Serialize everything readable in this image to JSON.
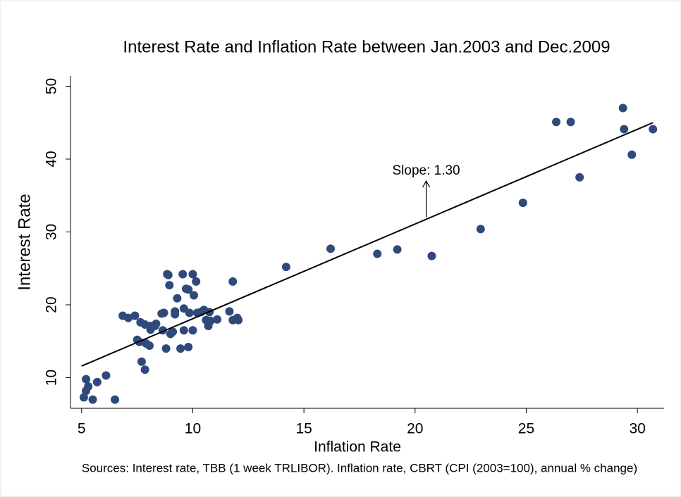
{
  "chart_data": {
    "type": "scatter",
    "title": "Interest Rate and Inflation Rate between Jan.2003 and Dec.2009",
    "x_label": "Inflation Rate",
    "y_label": "Interest Rate",
    "note": "Sources: Interest rate, TBB (1 week TRLIBOR). Inflation rate, CBRT (CPI (2003=100), annual % change)",
    "color": "#2f4a7a",
    "x": [
      5.1,
      5.2,
      5.3,
      5.2,
      5.5,
      5.7,
      6.1,
      6.5,
      6.85,
      7.1,
      7.4,
      7.5,
      7.6,
      7.65,
      7.7,
      7.85,
      7.85,
      7.9,
      8.05,
      8.1,
      8.1,
      8.3,
      8.35,
      8.6,
      8.7,
      8.65,
      8.85,
      8.8,
      8.9,
      8.95,
      9.0,
      9.1,
      9.2,
      9.2,
      9.3,
      9.45,
      9.55,
      9.6,
      9.6,
      9.7,
      9.8,
      9.8,
      9.85,
      10.0,
      10.0,
      10.05,
      10.15,
      10.2,
      10.35,
      10.5,
      10.6,
      10.7,
      10.75,
      10.8,
      11.1,
      11.65,
      11.8,
      11.8,
      12.0,
      12.05,
      14.2,
      16.2,
      18.3,
      19.2,
      20.75,
      22.95,
      24.85,
      26.35,
      27.0,
      27.4,
      29.35,
      29.4,
      29.75,
      30.7
    ],
    "values": [
      7.3,
      8.2,
      8.8,
      9.8,
      7.0,
      9.4,
      10.3,
      7.0,
      18.5,
      18.2,
      18.5,
      15.2,
      14.9,
      17.6,
      12.2,
      11.1,
      17.3,
      14.7,
      14.4,
      17.1,
      16.6,
      17.1,
      17.4,
      18.8,
      18.9,
      16.5,
      24.2,
      14.0,
      24.1,
      22.7,
      16.0,
      16.3,
      19.1,
      18.7,
      20.9,
      14.0,
      24.2,
      19.5,
      16.5,
      22.2,
      14.2,
      22.1,
      18.9,
      24.2,
      16.5,
      21.3,
      23.2,
      18.9,
      19.0,
      19.3,
      17.9,
      17.1,
      19.0,
      17.8,
      18.0,
      19.1,
      23.2,
      17.9,
      18.2,
      17.9,
      25.2,
      27.7,
      27.0,
      27.6,
      26.7,
      30.4,
      34.0,
      45.1,
      45.1,
      37.5,
      47.0,
      44.1,
      40.6,
      44.1
    ],
    "fit_line": {
      "x": [
        5.0,
        30.7
      ],
      "y": [
        11.6,
        45.0
      ]
    },
    "annotation": {
      "text": "Slope: 1.30",
      "x": 20.5,
      "y_from": 32,
      "y_to": 37
    },
    "xlim": [
      4.5,
      31.2
    ],
    "ylim": [
      5.8,
      51.4
    ],
    "xticks": [
      5,
      10,
      15,
      20,
      25,
      30
    ],
    "yticks": [
      10,
      20,
      30,
      40,
      50
    ],
    "grid": false
  }
}
